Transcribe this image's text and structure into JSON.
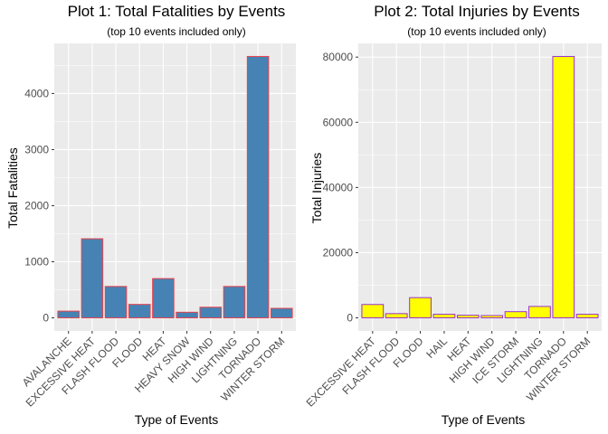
{
  "chart_data": [
    {
      "type": "bar",
      "title": "Plot 1: Total Fatalities by Events",
      "subtitle": "(top 10 events included only)",
      "xlabel": "Type of Events",
      "ylabel": "Total Fatalities",
      "categories": [
        "AVALANCHE",
        "EXCESSIVE HEAT",
        "FLASH FLOOD",
        "FLOOD",
        "HEAT",
        "HEAVY SNOW",
        "HIGH WIND",
        "LIGHTNING",
        "TORNADO",
        "WINTER STORM"
      ],
      "values": [
        120,
        1410,
        560,
        240,
        700,
        100,
        190,
        560,
        4660,
        170
      ],
      "yticks": [
        0,
        1000,
        2000,
        3000,
        4000
      ],
      "ylim": [
        -233,
        4893
      ],
      "fill": "#4682B4",
      "stroke": "#e8434c",
      "grid": true
    },
    {
      "type": "bar",
      "title": "Plot 2: Total Injuries by Events",
      "subtitle": "(top 10 events included only)",
      "xlabel": "Type of Events",
      "ylabel": "Total Injuries",
      "categories": [
        "EXCESSIVE HEAT",
        "FLASH FLOOD",
        "FLOOD",
        "HAIL",
        "HEAT",
        "HIGH WIND",
        "ICE STORM",
        "LIGHTNING",
        "TORNADO",
        "WINTER STORM"
      ],
      "values": [
        4100,
        1300,
        6200,
        1100,
        800,
        700,
        1900,
        3500,
        80200,
        1100
      ],
      "yticks": [
        0,
        20000,
        40000,
        60000,
        80000
      ],
      "ylim": [
        -4010,
        84210
      ],
      "fill": "#ffff00",
      "stroke": "#9932CC",
      "grid": true
    }
  ],
  "colors": {
    "panel_background": "#ebebeb",
    "grid_major": "#ffffff",
    "tick_text": "#4d4d4d"
  }
}
